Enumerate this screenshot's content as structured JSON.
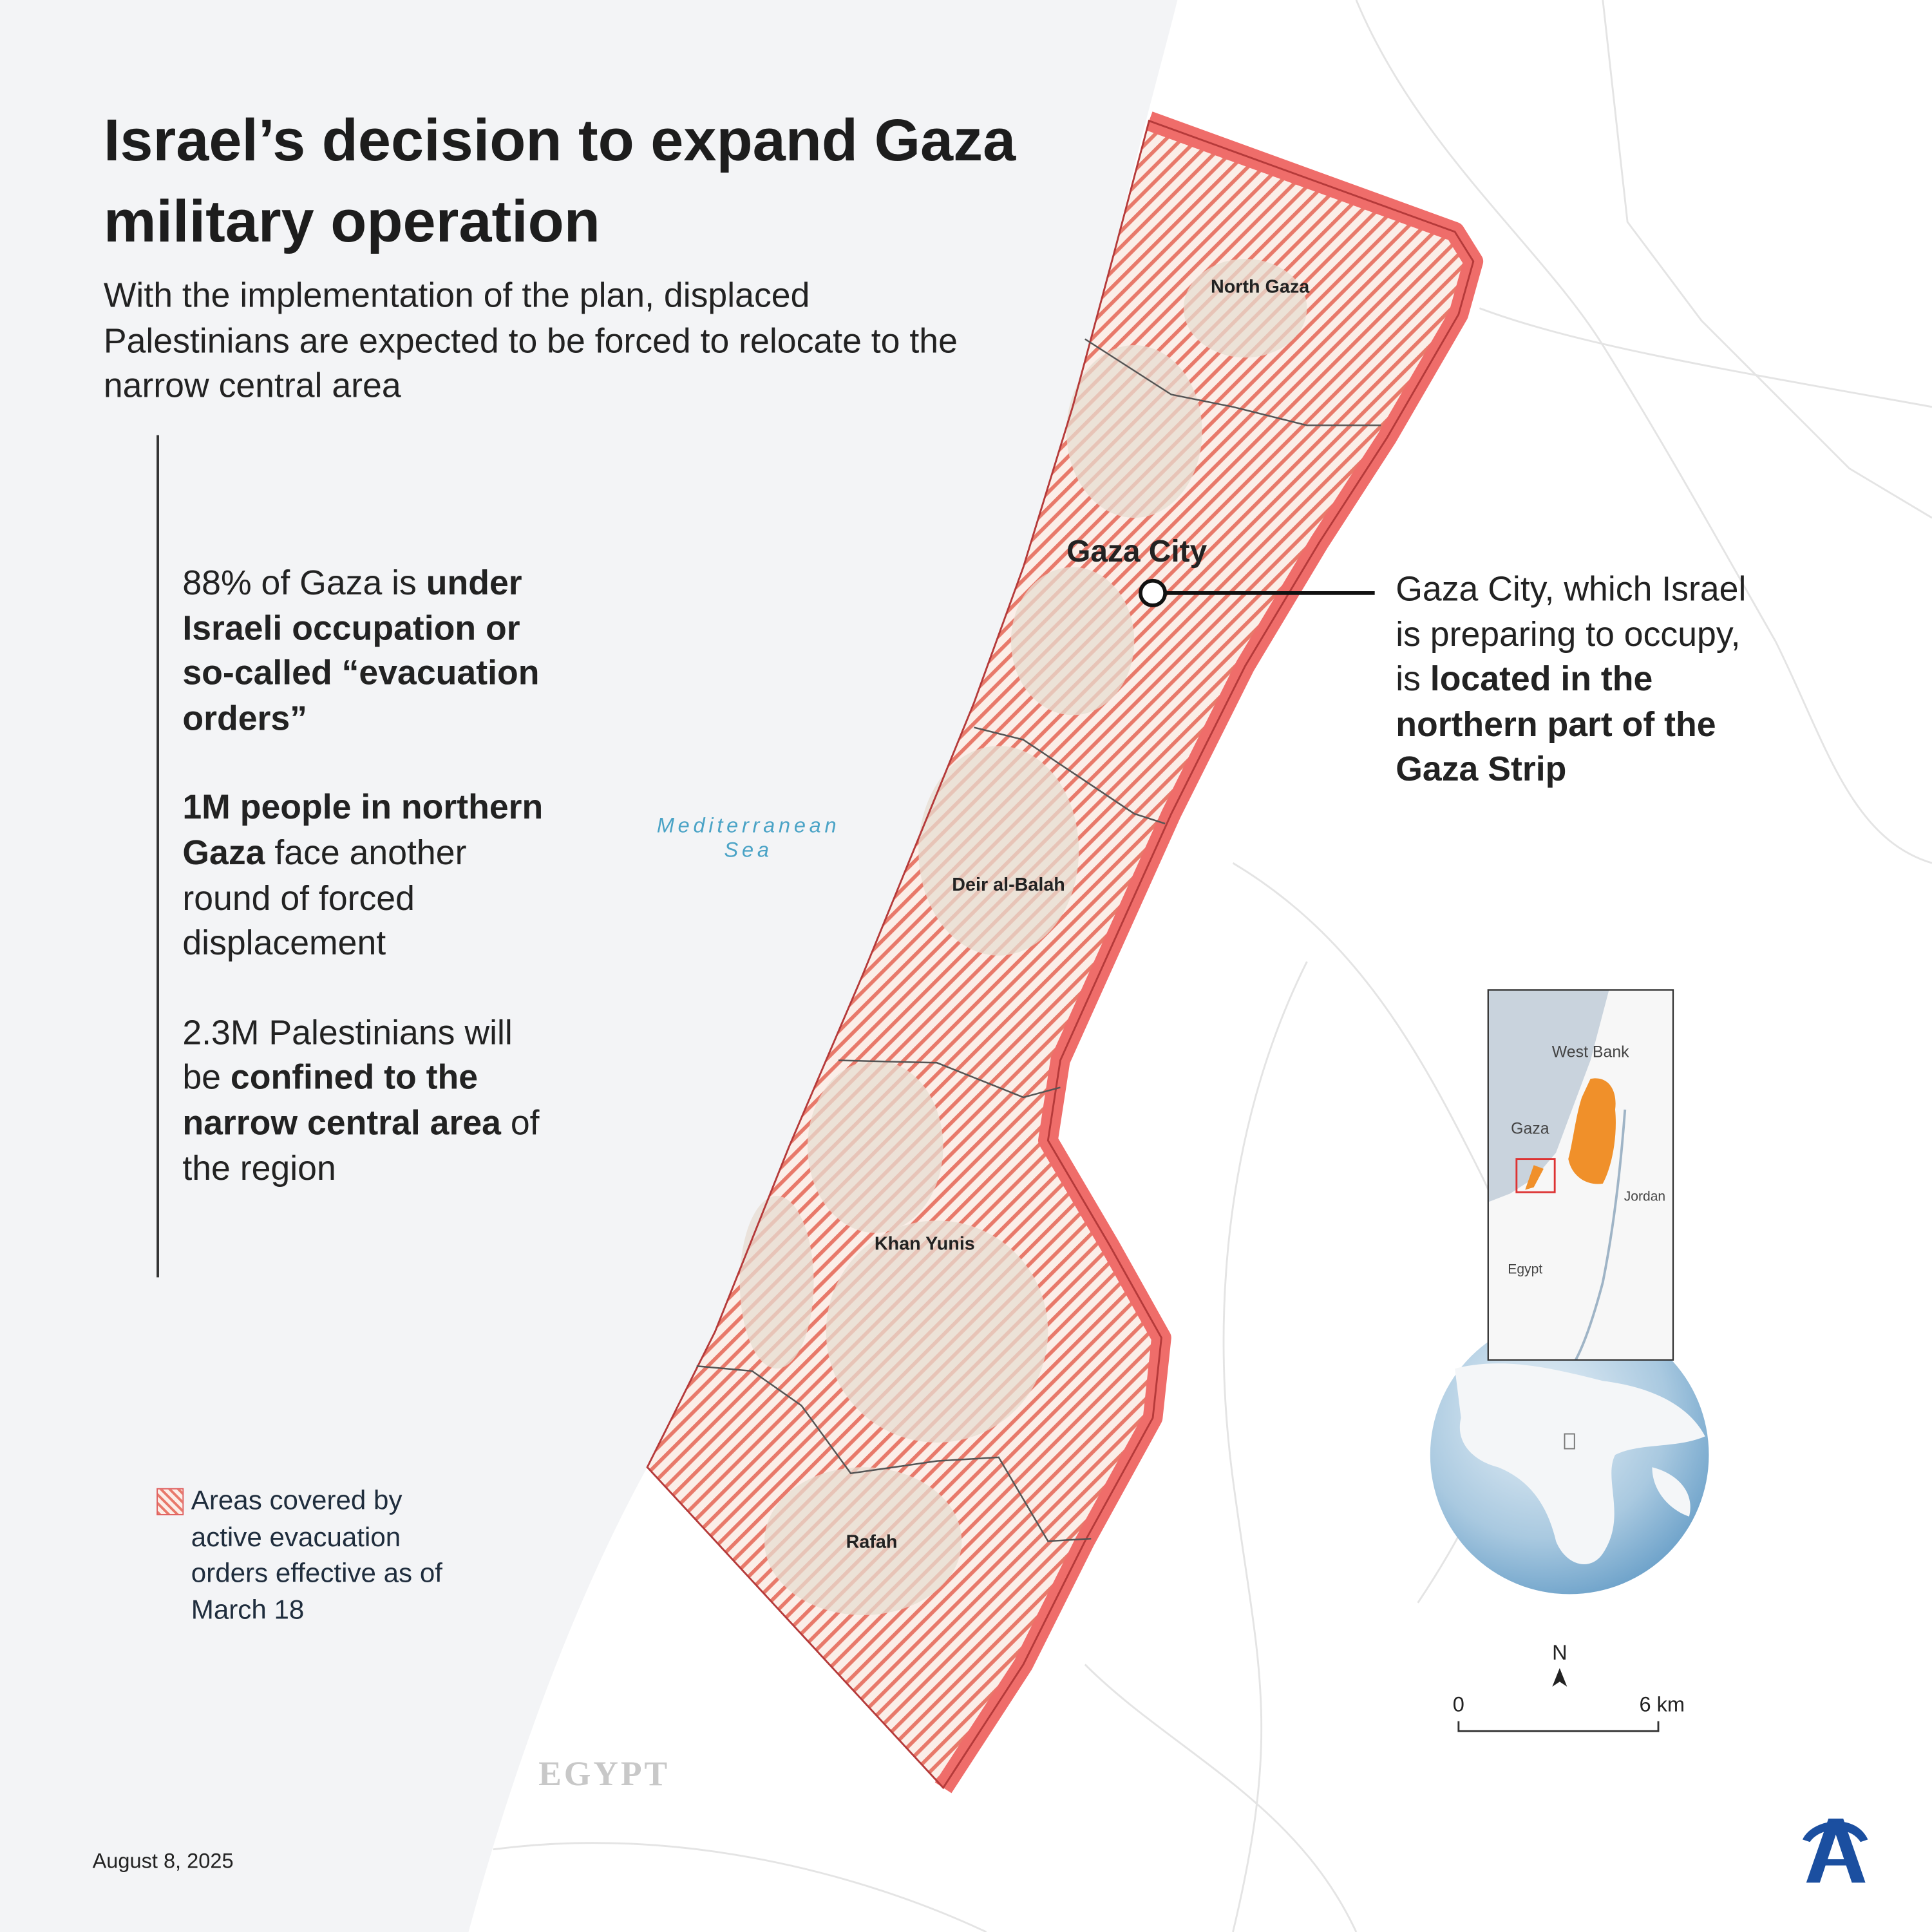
{
  "header": {
    "title": "Israel’s decision to expand Gaza military operation",
    "subtitle": "With the implementation of the plan, displaced Palestinians are expected to be forced to relocate to the narrow central area"
  },
  "facts": [
    {
      "segments": [
        {
          "text": "88% of Gaza is ",
          "bold": false
        },
        {
          "text": "under Israeli occupation or so-called “evacuation orders”",
          "bold": true
        }
      ]
    },
    {
      "segments": [
        {
          "text": "1M people in northern Gaza",
          "bold": true
        },
        {
          "text": " face another round of forced displacement",
          "bold": false
        }
      ]
    },
    {
      "segments": [
        {
          "text": "2.3M Palestinians will be ",
          "bold": false
        },
        {
          "text": "confined to the narrow central area",
          "bold": true
        },
        {
          "text": " of the region",
          "bold": false
        }
      ]
    }
  ],
  "callout": {
    "segments": [
      {
        "text": "Gaza City, which Israel is preparing to occupy, is ",
        "bold": false
      },
      {
        "text": "located in the northern part of the Gaza Strip",
        "bold": true
      }
    ]
  },
  "legend": {
    "label": "Areas covered by active evacuation orders effective as of March 18"
  },
  "map_labels": {
    "north_gaza": "North Gaza",
    "gaza_city": "Gaza City",
    "deir_al_balah": "Deir al-Balah",
    "khan_yunis": "Khan Yunis",
    "rafah": "Rafah",
    "sea": "Mediterranean Sea",
    "egypt": "EGYPT"
  },
  "inset_labels": {
    "west_bank": "West Bank",
    "gaza": "Gaza",
    "jordan": "Jordan",
    "egypt": "Egypt"
  },
  "scale": {
    "north": "N",
    "start": "0",
    "end": "6 km"
  },
  "footer": {
    "date": "August 8, 2025"
  }
}
